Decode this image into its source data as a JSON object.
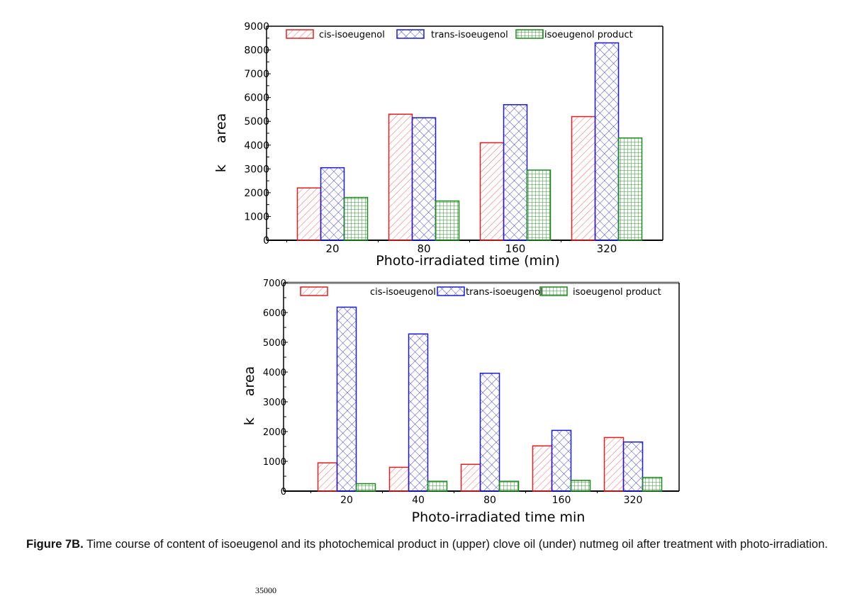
{
  "colors": {
    "cis": "#e02020",
    "trans": "#1a1ad8",
    "product": "#1a8a1a"
  },
  "chart_data": [
    {
      "type": "bar",
      "title": "",
      "xlabel": "Photo-irradiated time (min)",
      "ylabel": "k     area",
      "ylim": [
        0,
        9000
      ],
      "yticks": [
        "0",
        "1000",
        "2000",
        "3000",
        "4000",
        "5000",
        "6000",
        "7000",
        "8000",
        "9000"
      ],
      "categories": [
        "20",
        "80",
        "160",
        "320"
      ],
      "legend_position": "top",
      "series": [
        {
          "name": "cis-isoeugenol",
          "values": [
            2200,
            5300,
            4100,
            5200
          ]
        },
        {
          "name": "trans-isoeugenol",
          "values": [
            3050,
            5150,
            5700,
            8300
          ]
        },
        {
          "name": "isoeugenol product",
          "values": [
            1800,
            1650,
            2950,
            4300
          ]
        }
      ]
    },
    {
      "type": "bar",
      "title": "",
      "xlabel": "Photo-irradiated time min",
      "ylabel": "k     area",
      "ylim": [
        0,
        7000
      ],
      "yticks": [
        "0",
        "1000",
        "2000",
        "3000",
        "4000",
        "5000",
        "6000",
        "7000"
      ],
      "categories": [
        "20",
        "40",
        "80",
        "160",
        "320"
      ],
      "legend_position": "top",
      "series": [
        {
          "name": "cis-isoeugenol",
          "values": [
            950,
            800,
            900,
            1520,
            1800
          ]
        },
        {
          "name": "trans-isoeugenol",
          "values": [
            6180,
            5280,
            3960,
            2040,
            1650
          ]
        },
        {
          "name": "isoeugenol product",
          "values": [
            250,
            330,
            330,
            360,
            460
          ]
        }
      ]
    }
  ],
  "caption": {
    "label": "Figure 7B.",
    "text": " Time course of content of isoeugenol and its photochemical product in (upper) clove oil (under) nutmeg oil after treatment with photo-irradiation."
  },
  "stray_text": "35000"
}
